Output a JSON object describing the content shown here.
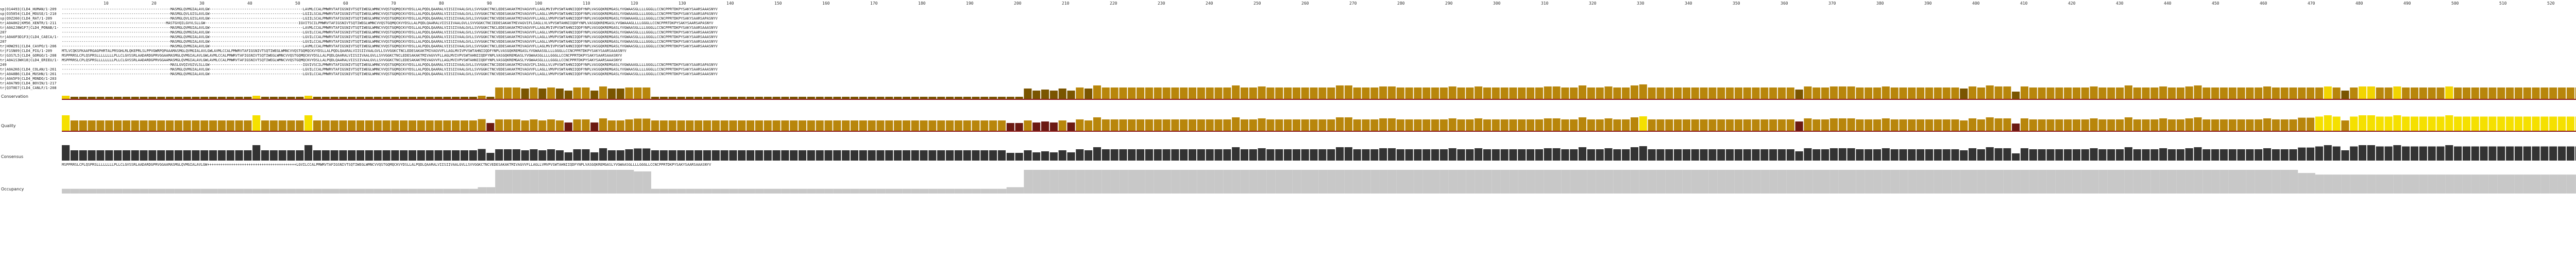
{
  "ruler": {
    "ticks": [
      "10",
      "20",
      "30",
      "40",
      "50",
      "60",
      "70",
      "80",
      "90",
      "100",
      "110",
      "120",
      "130",
      "140",
      "150",
      "160",
      "170",
      "180",
      "190",
      "200",
      "210",
      "220",
      "230",
      "240",
      "250",
      "260",
      "270",
      "280",
      "290",
      "300",
      "310",
      "320",
      "330",
      "340",
      "350",
      "360",
      "370",
      "380",
      "390",
      "400",
      "410",
      "420",
      "430",
      "440",
      "450",
      "460",
      "470",
      "480",
      "490",
      "500",
      "510",
      "520",
      "530",
      "540"
    ]
  },
  "sequences": {
    "names": [
      "sp|O14493|CLD4_HUMAN/1-209",
      "sp|O35054|CLD4_MOUSE/1-210",
      "sp|Q9Z260|CLD4_RAT/1-209",
      "tr|A0A0H2|KM56_XENTR/1-211",
      "tr|A0A2J8W1F7|CLD4_PONAB/1-207",
      "tr|A0A6P3D1F3|CLD4_CAECA/1-207",
      "tr|H0W291|CLD4_CAVPO/1-206",
      "tr|F1SN09|CLD4_PIG/1-209",
      "tr|G3S7L5|CLD4_GORGO/1-208",
      "tr|A0A1S3WX18|CLD4_ERIEU/1-249",
      "tr|A0A2K6|CLD4_COLAN/1-261",
      "tr|A0A8B6|CLD4_MUSHN/1-261",
      "tr|A0A5F9|CLD4_MONDO/1-203",
      "tr|A0A7N9|CLD4_BOVIN/1-217",
      "tr|Q3T0E7|CLD4_CANLF/1-208"
    ],
    "rows": [
      "--------------------------------------------------MASMGLQVMGIALAVLGW-------------------------------------------LAVMLCCALPMWRVTAFIGSNIVTSQTIWEGLWMNCVVQSTGQMQCKVYDSLLALPQDLQAARALVIISIIVAALGVLLSVVGGKCTNCLEDESAKAKTMIVAGVVFLLAGLMVIVPVSWTAHNIIQDFYNPLVASGQKREMGASLYVGWAASGLLLLGGGLLCCNCPPRTDKPYSAKYSAARSAAASNYV",
      "--------------------------------------------------MASMGLQVLGISLAVLGW-------------------------------------------LGIILSCALPMWRVTAFIGSNIVTSQTIWEGLWMNCVVQSTGQMQCKVYDSLLALPQDLQAARALVIISIIVAALGVLLSVVGGKCTNCVEDESAKAKTMIVAGVVFLLAGLLVMVPVSWTAHNIIQDFYNPLVASGQKREMGASLYVGWAAAGLLLLGGGLLCCNCPPRTDKPYSAKYSAARSAPASNYV",
      "--------------------------------------------------MASMGLQVLGISLAVLGW-------------------------------------------LGIILSCALPMWRVTAFIGSNIVTSQTIWEGLWMNCVVQSTGQMQCKVYDSLLALPQDLQAARALVIISIIVAALGVLLSVVGGKCTNCVEDESAKAKTMIVAGVVFLLAGLLVMVPVSWTAHNIIQDFYNPLVASGQKREMGASLYVGWAAAGLLLLGGGLLCCNCPPRTDKPYSAKYSAARSAPASNYV",
      "------------------------------------------------MASTGVQILGVVLSLLGW-------------------------------------------IGVITSCILPMWRVTAFIGSNIVTSQTIWEGLWMNCVVQSTGQMQCKVYDSLLALPQDLQAARALVIISIIVAALGVLLSVVGGKCTNCIEDESAKAKTMIVAGVIFLIAGLLVLVPVSWTAHNIIQDFYNPLVASGQKREMGASLYVGWAAAGLLLLGGGLLCCNCPPRTDKPYSAKYSAARSAPASNYV",
      "--------------------------------------------------MASMGLQVMGIALAVLGW-------------------------------------------LAVMLCCALPMWRVTAFIGSNIVTSQTIWEGLWMNCVVQSTGQMQCKVYDSLLALPQDLQAARALVIISIIVAALGVLLSVVGGKCTNCLEDESAKAKTMIVAGVVFLLAGLMVIVPVSWTAHNIIQDFYNPLVASGQKREMGASLYVGWAASGLLLLGGGLLCCNCPPRTDKPYSAKYSAARSAAASNYV",
      "--------------------------------------------------MASMGLQVMGIALAVLGW-------------------------------------------LGVILCCALPMWRVTAFIGSNIVTSQTIWEGLWMNCVVQSTGQMQCKVYDSLLALPQDLQAARALVIISIIVAALGVLLSVVGGKCTNCVEDESAKAKTMIVAGVVFLLAGLLVMVPVSWTAHNIIQDFYNPLVASGQKREMGASLYVGWAASGLLLLGGGLLCCNCPPRTDKPYSAKYSAARSAAASNYV",
      "--------------------------------------------------MASMGLQVMGIALAVLGW-------------------------------------------LGVILCCALPMWRVTAFIGSNIVTSQTIWEGLWMNCVVQSTGQMQCKVYDSLLALPQDLQAARALVIISIIVAALGVLLSVVGGKCTNCVEDESAKAKTMIVAGVVFLLAGLLVMVPVSWTAHNIIQDFYNPLVASGQKREMGASLYVGWAASGLLLLGGGLLCCNCPPRTDKPYSAKYSAARSAAASNYV",
      "--------------------------------------------------MASMGLQVMGIALAVLGW-------------------------------------------LGVILCCALPMWRVTAFIGSNIVTSQTIWEGLWMNCVVQSTGQMQCKVYDSLLALPQDLQAARALVIISIIVAALGVLLSVVGGKCTNCVEDESAKAKTMIVAGVVFLLAGLLVMVPVSWTAHNIIQDFYNPLVASGQKREMGASLYVGWAASGLLLLGGGLLCCNCPPRTDKPYSAKYSAARSAAASNYV",
      "--------------------------------------------------MASMGLQVMGIALAVLGW-------------------------------------------LAVMLCCALPMWRVTAFIGSNIVTSQTIWEGLWMNCVVQSTGQMQCKVYDSLLALPQDLQAARALVIISIIVAALGVLLSVVGGKCTNCLEDESAKAKTMIVAGVVFLLAGLMVIVPVSWTAHNIIQDFYNPLVASGQKREMGASLYVGWAASGLLLLGGGLLCCNCPPRTDKPYSAKYSAARSAAASNYV",
      "MTLVCQKSFKAAFRGAGPHRTALPRSGHLRLQKEPRLSLPPVGWRPQPAAAMASMGLQVMGIALAVLGWLAVMLCCALPMWRVTAFIGSNIVTSQTIWEGLWMNCVVQSTGQMQCKVYDSLLALPQDLQAARALVIISIIVAALGVLLSVVGGKCTNCLEDESAKAKTMIVAGVVFLLAGLMVIVPVSWTAHNIIQDFYNPLVASGQKREMGASLYVGWAASGLLLLGGGLLCCNCPPRTDKPYSAKYSAARSAAASNYV",
      "MSPPRRSLCPLQSPRSLLLLLLLLPLLCLGVSSRLAADARDGPRVGGAAMASMGLQVMGIALAVLGWLAVMLCCALPMWRVTAFIGSNIVTSQTIWEGLWMNCVVQSTGQMQCKVYDSLLALPQDLQAARALVIISIIVAALGVLLSVVGGKCTNCLEDESAKAKTMIVAGVVFLLAGLMVIVPVSWTAHNIIQDFYNPLVASGQKREMGASLYVGWAASGLLLLGGGLLCCNCPPRTDKPYSAKYSAARSAAASNYV",
      "MSPPRRSLCPLQSPRSLLLLLLLLPLLCLGVSSRLAADARDGPRVGGAAMASMGLQVMGIALAVLGWLAVMLCCALPMWRVTAFIGSNIVTSQTIWEGLWMNCVVQSTGQMQCKVYDSLLALPQDLQAARALVIISIIVAALGVLLSVVGGKCTNCLEDESAKAKTMIVAGVVFLLAGLMVIVPVSWTAHNIIQDFYNPLVASGQKREMGASLYVGWAASGLLLLGGGLLCCNCPPRTDKPYSAKYSAARSAAASNYV",
      "--------------------------------------------------MASLGVQIVGIVLSLLGW-------------------------------------------IGVIVSCILPMWRVTAFIGSNIVTSQTIWEGLWMNCVVQSTGQMQCKVYDSLLALPQDLQAARALVIISIIVAALGVLLSVVGGKCTNCIEDESAKAKTMIVAGVIFLIAGLLVLVPVSWTAHNIIQDFYNPLVASGQKREMGASLYVGWAAAGLLLLGGGLLCCNCPPRTDKPYSAKYSAARSAPASNYV",
      "--------------------------------------------------MASMGLQVMGIALAVLGW-------------------------------------------LGVILCCALPMWRVTAFIGSNIVTSQTIWEGLWMNCVVQSTGQMQCKVYDSLLALPQDLQAARALVIISIIVAALGVLLSVVGGKCTNCVEDESAKAKTMIVAGVVFLLAGLLVMVPVSWTAHNIIQDFYNPLVASGQKREMGASLYVGWAASGLLLLGGGLLCCNCPPRTDKPYSAKYSAARSAAASNYV",
      "--------------------------------------------------MASMGLQVMGIALAVLGW-------------------------------------------LGVILCCALPMWRVTAFIGSNIVTSQTIWEGLWMNCVVQSTGQMQCKVYDSLLALPQDLQAARALVIISIIVAALGVLLSVVGGKCTNCVEDESAKAKTMIVAGVVFLLAGLLVMVPVSWTAHNIIQDFYNPLVASGQKREMGASLYVGWAASGLLLLGGGLLCCNCPPRTDKPYSAKYSAARSAAASNYV"
    ]
  },
  "tracks": {
    "conservation_label": "Conservation",
    "quality_label": "Quality",
    "consensus_label": "Consensus",
    "occupancy_label": "Occupancy",
    "consensus_text": "MSPPRRSLCPLQSPRSLLLLLLLLPLLCLGVSSRLAADARDGPRVGGAAMASMGLQVMGIALAVLGW+++++++++++++++++++++++++++++++++++++++++LGVILCCALPMWRVTAFIGSNIVTSQTIWEGLWMNCVVQSTGQMQCKVYDSLLALPQDLQAARALVIISIIVAALGVLLSVVGGKCTNCVEDESAKAKTMIVAGVVFLLAGLLVMVPVSWTAHNIIQDFYNPLVASGQKREMGASLYVGWAASGLLLLGGGLLCCNCPPRTDKPYSAKYSAARSAAASNYV"
  },
  "colors": {
    "conservation_high": "#f2d400",
    "conservation_mid": "#b8860b",
    "conservation_low": "#7a5500",
    "quality_high": "#f5e000",
    "quality_low": "#6b1a12",
    "baseline_red": "#8b1a1a",
    "occupancy": "#c8c8c8",
    "consensus_bar": "#333333"
  }
}
